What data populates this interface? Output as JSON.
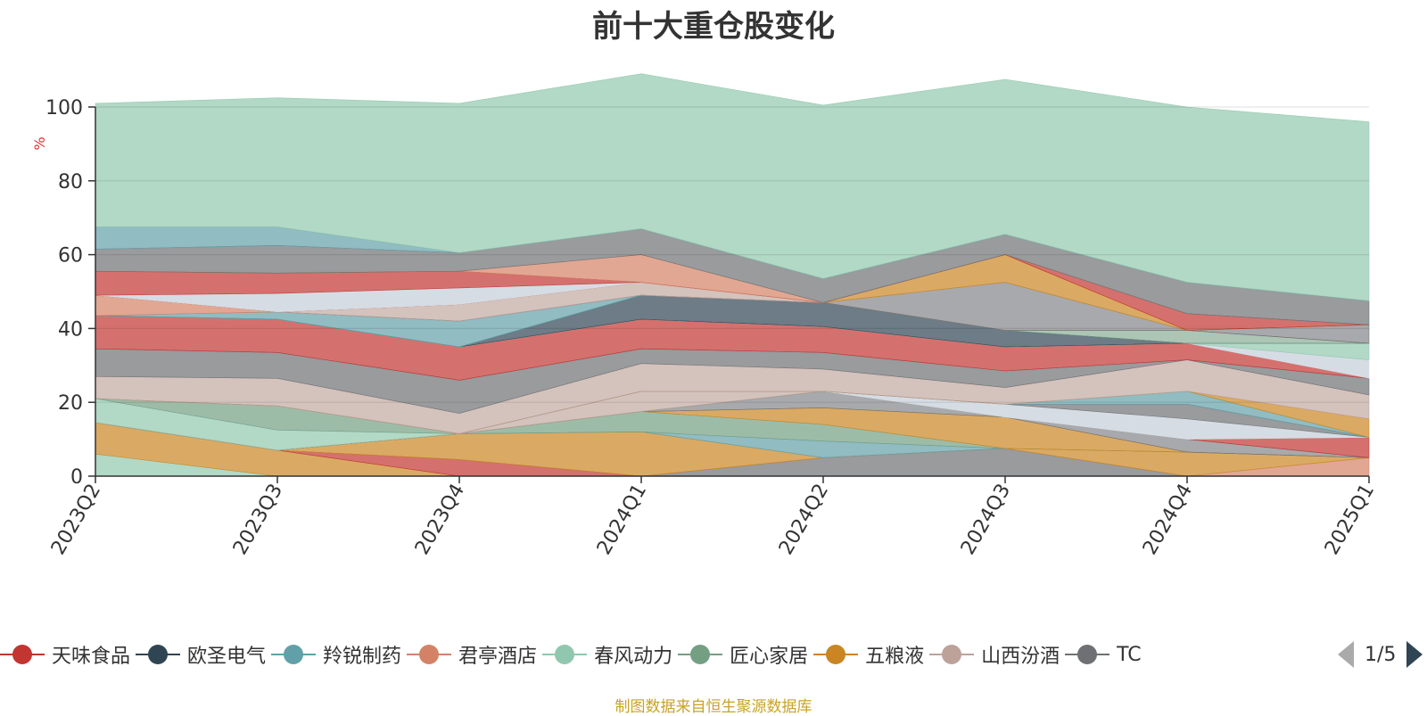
{
  "title": "前十大重仓股变化",
  "source": "制图数据来自恒生聚源数据库",
  "pager": {
    "text": "1/5"
  },
  "legend": [
    {
      "name": "天味食品",
      "color": "#c23531"
    },
    {
      "name": "欧圣电气",
      "color": "#2f4554"
    },
    {
      "name": "羚锐制药",
      "color": "#61a0a8"
    },
    {
      "name": "君亭酒店",
      "color": "#d48265"
    },
    {
      "name": "春风动力",
      "color": "#91c7ae"
    },
    {
      "name": "匠心家居",
      "color": "#749f83"
    },
    {
      "name": "五粮液",
      "color": "#ca8622"
    },
    {
      "name": "山西汾酒",
      "color": "#bda29a"
    },
    {
      "name": "TC",
      "color": "#6e7074"
    }
  ],
  "chart_data": {
    "type": "area",
    "stacked": true,
    "x": [
      "2023Q2",
      "2023Q3",
      "2023Q4",
      "2024Q1",
      "2024Q2",
      "2024Q3",
      "2024Q4",
      "2025Q1"
    ],
    "ylabel": "%",
    "ylim": [
      0,
      100
    ],
    "yticks": [
      0,
      20,
      40,
      60,
      80,
      100
    ],
    "grid": true,
    "series": [
      {
        "color": "#91c7ae",
        "opacity": 0.7,
        "values": [
          6,
          0,
          0,
          0,
          0,
          0,
          0,
          0
        ]
      },
      {
        "color": "#ca8622",
        "opacity": 0.7,
        "values": [
          8.5,
          7,
          0,
          0,
          0,
          0,
          0,
          0
        ]
      },
      {
        "color": "#c23531",
        "opacity": 0.7,
        "values": [
          0,
          0,
          4.5,
          0,
          0,
          0,
          0,
          0
        ]
      },
      {
        "color": "#6e7074",
        "opacity": 0.7,
        "values": [
          0,
          0,
          0,
          0,
          5,
          7.5,
          0,
          0
        ]
      },
      {
        "color": "#d48265",
        "opacity": 0.7,
        "values": [
          0,
          0,
          0,
          0,
          0,
          0,
          0,
          5
        ]
      },
      {
        "color": "#ca8622",
        "opacity": 0.7,
        "values": [
          0,
          0,
          7,
          12,
          0,
          0,
          6.5,
          0
        ]
      },
      {
        "color": "#61a0a8",
        "opacity": 0.7,
        "values": [
          0,
          0,
          0,
          0,
          4.5,
          0,
          0,
          0
        ]
      },
      {
        "color": "#749f83",
        "opacity": 0.7,
        "values": [
          0,
          0,
          0,
          5.5,
          4.5,
          0,
          0,
          0
        ]
      },
      {
        "color": "#ca8622",
        "opacity": 0.7,
        "values": [
          0,
          0,
          0,
          0,
          4.5,
          8.5,
          0,
          0
        ]
      },
      {
        "color": "#6e7074",
        "opacity": 0.6,
        "values": [
          0,
          0,
          0,
          0,
          4.5,
          0,
          3.5,
          0
        ]
      },
      {
        "color": "#c23531",
        "opacity": 0.7,
        "values": [
          0,
          0,
          0,
          0,
          0,
          0,
          0,
          5.5
        ]
      },
      {
        "color": "#91c7ae",
        "opacity": 0.7,
        "values": [
          6.5,
          5.5,
          0,
          0,
          0,
          0,
          0,
          0
        ]
      },
      {
        "color": "#749f83",
        "opacity": 0.7,
        "values": [
          0,
          6.5,
          0,
          0,
          0,
          0,
          0,
          0
        ]
      },
      {
        "color": "#bda29a",
        "opacity": 0.65,
        "values": [
          0,
          0,
          0,
          5.5,
          0,
          0,
          0,
          0
        ]
      },
      {
        "color": "#d5dce4",
        "opacity": 1,
        "values": [
          0,
          0,
          0,
          0,
          0,
          3.5,
          5.5,
          0
        ]
      },
      {
        "color": "#6e7074",
        "opacity": 0.7,
        "values": [
          0,
          0,
          0,
          0,
          0,
          0,
          4,
          0
        ]
      },
      {
        "color": "#61a0a8",
        "opacity": 0.7,
        "values": [
          0,
          0,
          0,
          0,
          0,
          0,
          3.5,
          0
        ]
      },
      {
        "color": "#ca8622",
        "opacity": 0.7,
        "values": [
          0,
          0,
          0,
          0,
          0,
          0,
          0,
          5
        ]
      },
      {
        "color": "#bda29a",
        "opacity": 0.65,
        "values": [
          6,
          7.5,
          5.5,
          7.5,
          6,
          4.5,
          8.5,
          6.5
        ]
      },
      {
        "color": "#6e7074",
        "opacity": 0.7,
        "values": [
          7.5,
          7,
          9,
          4,
          4.5,
          4.5,
          0,
          4.5
        ]
      },
      {
        "color": "#c23531",
        "opacity": 0.7,
        "values": [
          9,
          9,
          9,
          8,
          7,
          6.5,
          4.5,
          0
        ]
      },
      {
        "color": "#d5dce4",
        "opacity": 1,
        "values": [
          0,
          0,
          0,
          0,
          0,
          0,
          0,
          5
        ]
      },
      {
        "color": "#91c7ae",
        "opacity": 0.7,
        "values": [
          0,
          0,
          0,
          0,
          0,
          0,
          0,
          4.5
        ]
      },
      {
        "color": "#2f4554",
        "opacity": 0.7,
        "values": [
          0,
          0,
          0,
          6.5,
          6.5,
          4.5,
          0,
          0
        ]
      },
      {
        "color": "#749f83",
        "opacity": 0.6,
        "values": [
          0,
          0,
          0,
          0,
          0,
          0,
          3.5,
          0
        ]
      },
      {
        "color": "#61a0a8",
        "opacity": 0.7,
        "values": [
          0,
          2,
          7,
          0,
          0,
          0,
          0,
          0
        ]
      },
      {
        "color": "#d48265",
        "opacity": 0.7,
        "values": [
          5.5,
          0,
          0,
          0,
          0,
          0,
          0,
          0
        ]
      },
      {
        "color": "#6e7074",
        "opacity": 0.6,
        "values": [
          0,
          0,
          0,
          0,
          0,
          13,
          0,
          5
        ]
      },
      {
        "color": "#bda29a",
        "opacity": 0.65,
        "values": [
          0,
          0,
          4.5,
          3.5,
          0,
          0,
          0,
          0
        ]
      },
      {
        "color": "#ca8622",
        "opacity": 0.7,
        "values": [
          0,
          0,
          0,
          0,
          0,
          7.5,
          0,
          0
        ]
      },
      {
        "color": "#c23531",
        "opacity": 0.7,
        "values": [
          0,
          0,
          0,
          0,
          0,
          0,
          4.5,
          0
        ]
      },
      {
        "color": "#d5dce4",
        "opacity": 1,
        "values": [
          0,
          5,
          4.5,
          0,
          0,
          0,
          0,
          0
        ]
      },
      {
        "color": "#c23531",
        "opacity": 0.7,
        "values": [
          6.5,
          5.5,
          4.5,
          0,
          0,
          0,
          0,
          0
        ]
      },
      {
        "color": "#d48265",
        "opacity": 0.7,
        "values": [
          0,
          0,
          0,
          7.5,
          0,
          0,
          0,
          0
        ]
      },
      {
        "color": "#6e7074",
        "opacity": 0.7,
        "values": [
          6,
          7.5,
          5,
          7,
          6.5,
          5.5,
          8.5,
          6.5
        ]
      },
      {
        "color": "#61a0a8",
        "opacity": 0.7,
        "values": [
          6,
          5,
          0,
          0,
          0,
          0,
          0,
          0
        ]
      },
      {
        "color": "#91c7ae",
        "opacity": 0.7,
        "values": [
          33.5,
          35,
          40.5,
          42,
          47,
          42,
          47.5,
          48.5
        ]
      }
    ]
  }
}
